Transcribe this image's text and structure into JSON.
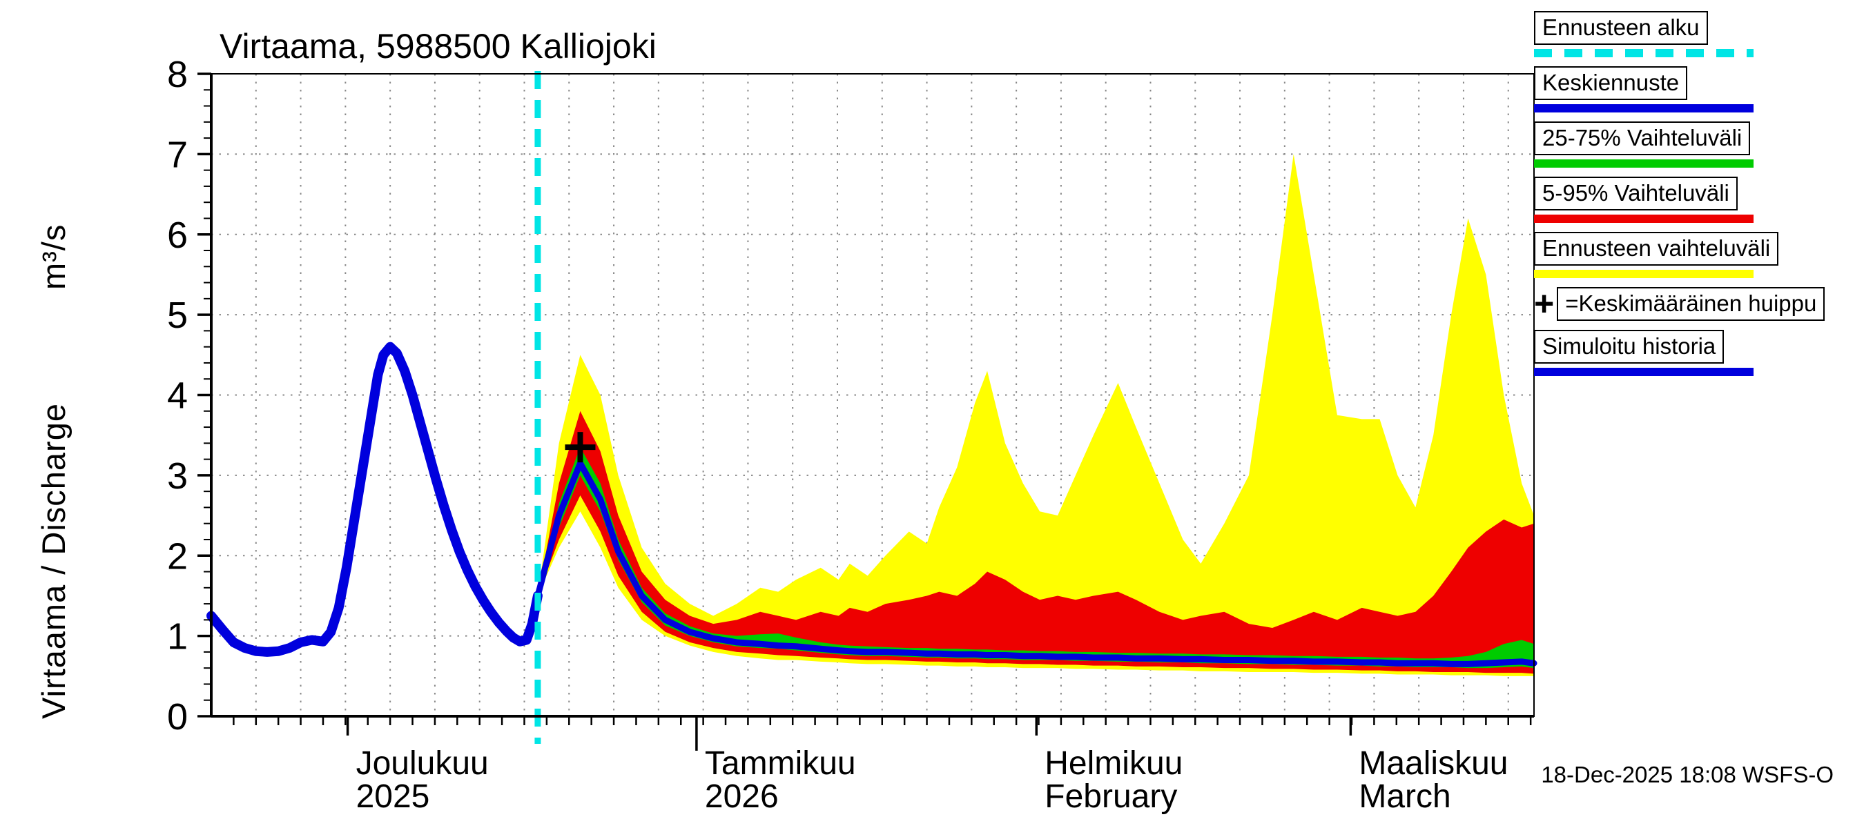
{
  "title": "Virtaama, 5988500 Kalliojoki",
  "timestamp": "18-Dec-2025 18:08 WSFS-O",
  "y_axis": {
    "label_main": "Virtaama / Discharge",
    "label_unit": "m³/s",
    "min": 0,
    "max": 8,
    "tick_step": 1
  },
  "legend": {
    "items": [
      {
        "id": "ennusteen-alku",
        "label": "Ennusteen alku",
        "swatch": "dashed",
        "color": "#00e5e5"
      },
      {
        "id": "keskiennuste",
        "label": "Keskiennuste",
        "swatch": "line",
        "color": "#0000dd"
      },
      {
        "id": "vaihteluvali-25-75",
        "label": "25-75% Vaihteluväli",
        "swatch": "line",
        "color": "#00cc00"
      },
      {
        "id": "vaihteluvali-5-95",
        "label": "5-95% Vaihteluväli",
        "swatch": "line",
        "color": "#ee0000"
      },
      {
        "id": "ennusteen-vaihteluvali",
        "label": "Ennusteen vaihteluväli",
        "swatch": "line",
        "color": "#ffff00"
      },
      {
        "id": "keskimaarainen-huippu",
        "label": "=Keskimääräinen huippu",
        "swatch": "plus",
        "prefix": "+",
        "color": "#000000"
      },
      {
        "id": "simuloitu-historia",
        "label": "Simuloitu historia",
        "swatch": "line",
        "color": "#0000dd"
      }
    ]
  },
  "chart_data": {
    "type": "area",
    "title": "Virtaama, 5988500 Kalliojoki",
    "ylabel": "Virtaama / Discharge (m³/s)",
    "ylim": [
      0,
      8
    ],
    "x_unit": "days",
    "x_max": 118.3,
    "forecast_start_t": 29.2,
    "grid": {
      "h_step": 1,
      "v_step_days": 4
    },
    "months": [
      {
        "t": 12.2,
        "line1": "Joulukuu",
        "line2": "2025",
        "long_tick": false
      },
      {
        "t": 43.4,
        "line1": "Tammikuu",
        "line2": "2026",
        "long_tick": true
      },
      {
        "t": 73.8,
        "line1": "Helmikuu",
        "line2": "February",
        "long_tick": false
      },
      {
        "t": 101.9,
        "line1": "Maaliskuu",
        "line2": "March",
        "long_tick": false
      }
    ],
    "colors": {
      "history": "#0000dd",
      "median": "#0000dd",
      "band_25_75": "#00cc00",
      "band_5_95": "#ee0000",
      "band_minmax": "#ffff00",
      "forecast_start": "#00e5e5",
      "peak_marker": "#000000",
      "grid": "#888888",
      "axis": "#000000"
    },
    "history": {
      "name": "Simuloitu historia",
      "t": [
        0,
        1,
        2,
        3,
        4,
        5,
        6,
        7,
        8,
        9,
        10,
        10.7,
        11.4,
        12.1,
        12.8,
        13.5,
        14.2,
        14.9,
        15.4,
        16.0,
        16.6,
        17.3,
        18.0,
        18.7,
        19.4,
        20.1,
        20.8,
        21.5,
        22.2,
        22.9,
        23.6,
        24.3,
        25.0,
        25.7,
        26.4,
        27.0,
        27.6,
        28.2,
        28.7,
        29.2
      ],
      "v": [
        1.25,
        1.08,
        0.92,
        0.85,
        0.81,
        0.8,
        0.81,
        0.85,
        0.92,
        0.95,
        0.93,
        1.05,
        1.35,
        1.85,
        2.45,
        3.05,
        3.65,
        4.25,
        4.5,
        4.6,
        4.52,
        4.3,
        4.0,
        3.65,
        3.3,
        2.95,
        2.62,
        2.32,
        2.05,
        1.82,
        1.62,
        1.45,
        1.3,
        1.17,
        1.06,
        0.98,
        0.93,
        0.95,
        1.15,
        1.5
      ]
    },
    "forecast": {
      "t": [
        29.2,
        31.1,
        33.0,
        34.8,
        36.4,
        38.5,
        40.6,
        42.8,
        44.9,
        47.0,
        49.1,
        50.7,
        52.3,
        54.5,
        56.1,
        57.1,
        58.7,
        60.3,
        62.4,
        64.0,
        65.1,
        66.7,
        68.3,
        69.4,
        71.0,
        72.6,
        74.1,
        75.7,
        77.3,
        78.9,
        81.1,
        82.7,
        84.8,
        86.9,
        88.5,
        90.6,
        92.8,
        94.9,
        96.8,
        98.6,
        100.7,
        102.9,
        104.5,
        106.1,
        107.7,
        109.3,
        110.9,
        112.4,
        114.0,
        115.6,
        117.2,
        118.3
      ],
      "median": [
        1.5,
        2.5,
        3.15,
        2.7,
        2.05,
        1.5,
        1.2,
        1.05,
        0.97,
        0.92,
        0.9,
        0.88,
        0.87,
        0.84,
        0.82,
        0.81,
        0.8,
        0.8,
        0.79,
        0.78,
        0.78,
        0.77,
        0.77,
        0.76,
        0.76,
        0.75,
        0.75,
        0.74,
        0.74,
        0.73,
        0.73,
        0.72,
        0.72,
        0.71,
        0.71,
        0.7,
        0.7,
        0.69,
        0.69,
        0.68,
        0.68,
        0.67,
        0.67,
        0.66,
        0.66,
        0.66,
        0.65,
        0.65,
        0.66,
        0.67,
        0.68,
        0.66
      ],
      "p75": [
        1.5,
        2.65,
        3.35,
        2.9,
        2.2,
        1.6,
        1.28,
        1.12,
        1.03,
        1.0,
        1.02,
        1.03,
        0.98,
        0.92,
        0.89,
        0.88,
        0.87,
        0.86,
        0.85,
        0.85,
        0.84,
        0.84,
        0.83,
        0.83,
        0.82,
        0.82,
        0.81,
        0.81,
        0.8,
        0.8,
        0.79,
        0.79,
        0.78,
        0.78,
        0.77,
        0.77,
        0.76,
        0.76,
        0.75,
        0.75,
        0.74,
        0.74,
        0.73,
        0.73,
        0.72,
        0.72,
        0.73,
        0.75,
        0.8,
        0.9,
        0.95,
        0.9
      ],
      "p25": [
        1.5,
        2.35,
        3.0,
        2.55,
        1.95,
        1.42,
        1.13,
        1.0,
        0.92,
        0.87,
        0.85,
        0.84,
        0.82,
        0.79,
        0.77,
        0.76,
        0.75,
        0.75,
        0.74,
        0.73,
        0.73,
        0.72,
        0.72,
        0.71,
        0.71,
        0.7,
        0.7,
        0.7,
        0.69,
        0.69,
        0.68,
        0.68,
        0.67,
        0.67,
        0.66,
        0.66,
        0.65,
        0.65,
        0.64,
        0.64,
        0.63,
        0.63,
        0.62,
        0.62,
        0.61,
        0.61,
        0.61,
        0.6,
        0.6,
        0.61,
        0.62,
        0.6
      ],
      "p95": [
        1.5,
        2.9,
        3.8,
        3.3,
        2.5,
        1.8,
        1.45,
        1.25,
        1.15,
        1.2,
        1.3,
        1.25,
        1.2,
        1.3,
        1.25,
        1.35,
        1.3,
        1.4,
        1.45,
        1.5,
        1.55,
        1.5,
        1.65,
        1.8,
        1.7,
        1.55,
        1.45,
        1.5,
        1.45,
        1.5,
        1.55,
        1.45,
        1.3,
        1.2,
        1.25,
        1.3,
        1.15,
        1.1,
        1.2,
        1.3,
        1.2,
        1.35,
        1.3,
        1.25,
        1.3,
        1.5,
        1.8,
        2.1,
        2.3,
        2.45,
        2.35,
        2.4
      ],
      "p05": [
        1.5,
        2.2,
        2.75,
        2.3,
        1.75,
        1.3,
        1.05,
        0.92,
        0.85,
        0.8,
        0.78,
        0.76,
        0.75,
        0.73,
        0.72,
        0.71,
        0.7,
        0.7,
        0.69,
        0.68,
        0.68,
        0.67,
        0.67,
        0.66,
        0.66,
        0.65,
        0.65,
        0.64,
        0.64,
        0.63,
        0.63,
        0.62,
        0.62,
        0.61,
        0.61,
        0.6,
        0.6,
        0.59,
        0.59,
        0.58,
        0.58,
        0.57,
        0.57,
        0.56,
        0.56,
        0.55,
        0.55,
        0.55,
        0.54,
        0.54,
        0.54,
        0.53
      ],
      "max": [
        1.5,
        3.4,
        4.5,
        4.0,
        3.0,
        2.1,
        1.65,
        1.4,
        1.25,
        1.4,
        1.6,
        1.55,
        1.7,
        1.85,
        1.7,
        1.9,
        1.75,
        2.0,
        2.3,
        2.15,
        2.6,
        3.1,
        3.9,
        4.3,
        3.4,
        2.9,
        2.55,
        2.5,
        3.0,
        3.5,
        4.15,
        3.6,
        2.9,
        2.2,
        1.9,
        2.4,
        3.0,
        5.0,
        7.0,
        5.5,
        3.75,
        3.7,
        3.7,
        3.0,
        2.6,
        3.5,
        5.0,
        6.2,
        5.5,
        4.0,
        2.9,
        2.5
      ],
      "min": [
        1.5,
        2.1,
        2.55,
        2.1,
        1.6,
        1.2,
        1.0,
        0.88,
        0.8,
        0.75,
        0.72,
        0.7,
        0.7,
        0.68,
        0.67,
        0.66,
        0.65,
        0.65,
        0.64,
        0.63,
        0.63,
        0.62,
        0.62,
        0.61,
        0.61,
        0.6,
        0.6,
        0.6,
        0.59,
        0.59,
        0.58,
        0.58,
        0.57,
        0.57,
        0.56,
        0.56,
        0.55,
        0.55,
        0.55,
        0.54,
        0.54,
        0.53,
        0.53,
        0.52,
        0.52,
        0.52,
        0.51,
        0.51,
        0.51,
        0.5,
        0.5,
        0.5
      ]
    },
    "peak_marker": {
      "t": 33.0,
      "value": 3.35,
      "label": "Keskimääräinen huippu"
    }
  }
}
